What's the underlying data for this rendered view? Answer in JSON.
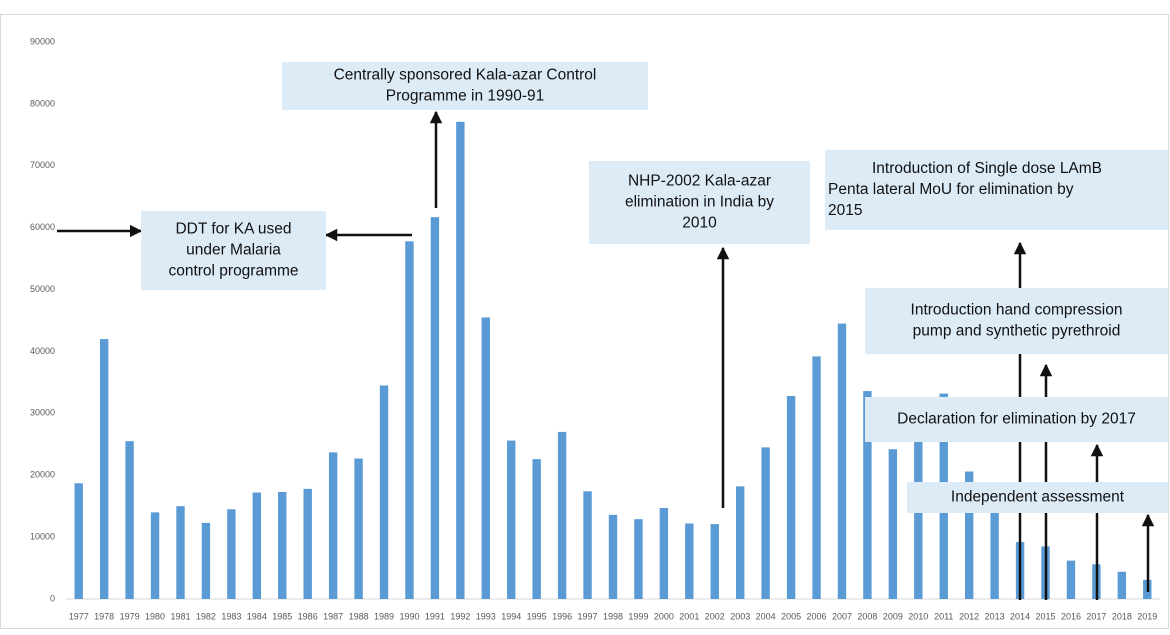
{
  "chart_data": {
    "type": "bar",
    "categories": [
      "1977",
      "1978",
      "1979",
      "1980",
      "1981",
      "1982",
      "1983",
      "1984",
      "1985",
      "1986",
      "1987",
      "1988",
      "1989",
      "1990",
      "1991",
      "1992",
      "1993",
      "1994",
      "1995",
      "1996",
      "1997",
      "1998",
      "1999",
      "2000",
      "2001",
      "2002",
      "2003",
      "2004",
      "2005",
      "2006",
      "2007",
      "2008",
      "2009",
      "2010",
      "2011",
      "2012",
      "2013",
      "2014",
      "2015",
      "2016",
      "2017",
      "2018",
      "2019"
    ],
    "values": [
      18700,
      42000,
      25500,
      14000,
      15000,
      12300,
      14500,
      17200,
      17300,
      17800,
      23700,
      22700,
      34500,
      57800,
      61700,
      77100,
      45500,
      25600,
      22600,
      27000,
      17400,
      13600,
      12900,
      14700,
      12200,
      12100,
      18200,
      24500,
      32800,
      39200,
      44500,
      33600,
      24200,
      29000,
      33200,
      20600,
      13900,
      9200,
      8500,
      6200,
      5600,
      4400,
      3100
    ],
    "color": "#5b9bd5",
    "ylim": [
      0,
      90000
    ],
    "yticks": [
      0,
      10000,
      20000,
      30000,
      40000,
      50000,
      60000,
      70000,
      80000,
      90000
    ],
    "grid": false,
    "annotations": [
      {
        "lines": [
          "DDT for KA used",
          "under Malaria",
          "control programme"
        ]
      },
      {
        "lines": [
          "Centrally sponsored Kala-azar Control",
          "Programme in 1990-91"
        ]
      },
      {
        "lines": [
          "NHP-2002 Kala-azar",
          "elimination in India by",
          "2010"
        ]
      },
      {
        "lines": [
          "Introduction of Single dose LAmB",
          "Penta lateral MoU for elimination by",
          "2015"
        ]
      },
      {
        "lines": [
          "Introduction hand compression",
          "pump and synthetic pyrethroid"
        ]
      },
      {
        "lines": [
          "Declaration for elimination by 2017"
        ]
      },
      {
        "lines": [
          "Independent assessment"
        ]
      }
    ]
  }
}
